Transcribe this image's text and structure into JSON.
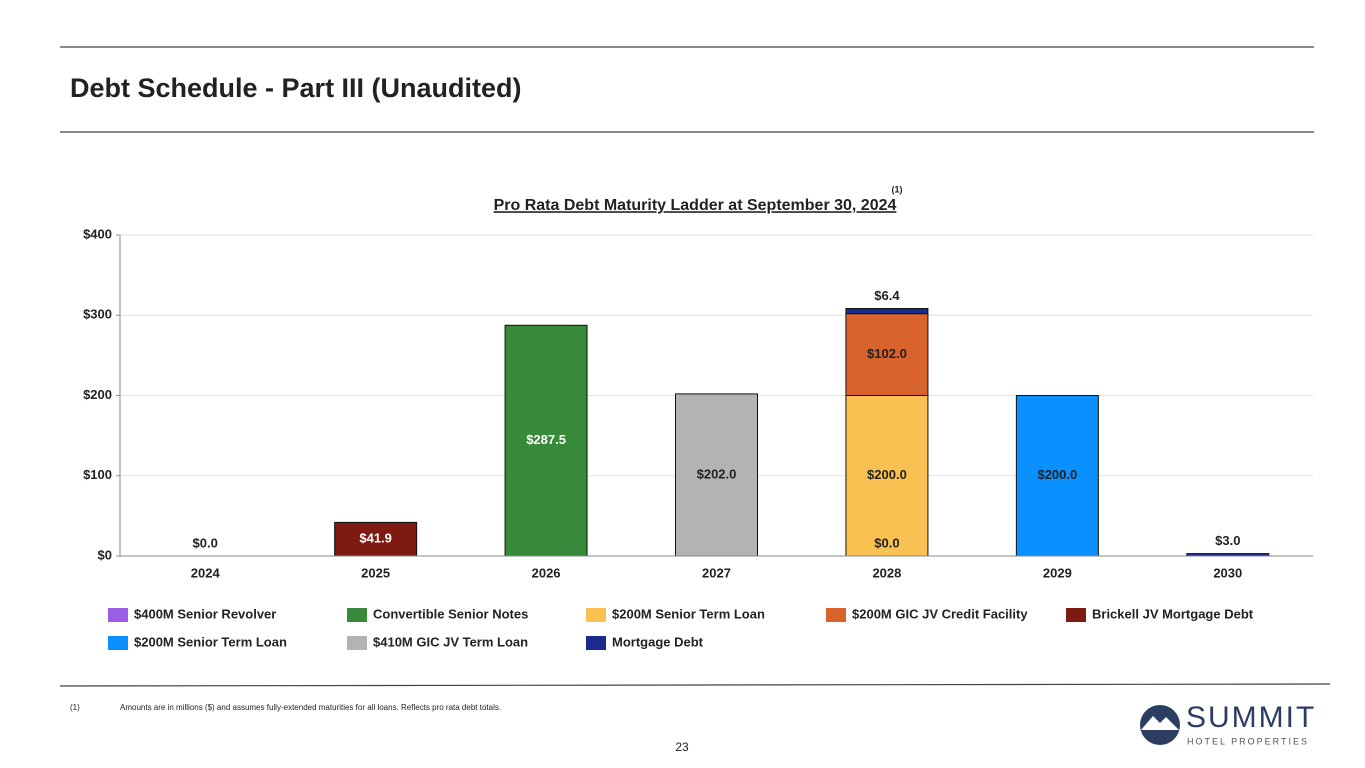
{
  "slide": {
    "title": "Debt Schedule - Part III (Unaudited)",
    "footnote_marker": "(1)",
    "footnote": "Amounts are in millions ($) and assumes fully-extended maturities for all loans. Reflects pro rata debt totals.",
    "page_number": "23",
    "logo_name": "SUMMIT",
    "logo_tagline": "HOTEL PROPERTIES"
  },
  "chart_data": {
    "type": "stacked_bar",
    "title": "Pro Rata Debt Maturity Ladder at September 30, 2024",
    "title_note": "(1)",
    "categories": [
      "2024",
      "2025",
      "2026",
      "2027",
      "2028",
      "2029",
      "2030"
    ],
    "ylim": [
      0,
      400
    ],
    "yticks": [
      {
        "value": 0,
        "label": "$0"
      },
      {
        "value": 100,
        "label": "$100"
      },
      {
        "value": 200,
        "label": "$200"
      },
      {
        "value": 300,
        "label": "$300"
      },
      {
        "value": 400,
        "label": "$400"
      }
    ],
    "grid": true,
    "series": [
      {
        "name": "$400M Senior Revolver",
        "color": "#9b5de5",
        "values": [
          0,
          null,
          null,
          null,
          0,
          null,
          null
        ],
        "value_labels": [
          "$0.0",
          null,
          null,
          null,
          "$0.0",
          null,
          null
        ]
      },
      {
        "name": "Convertible Senior Notes",
        "color": "#378a3a",
        "values": [
          null,
          null,
          287.5,
          null,
          null,
          null,
          null
        ],
        "value_labels": [
          null,
          null,
          "$287.5",
          null,
          null,
          null,
          null
        ]
      },
      {
        "name": "$200M Senior Term Loan",
        "color": "#f9c152",
        "values": [
          null,
          null,
          null,
          null,
          200,
          null,
          null
        ],
        "value_labels": [
          null,
          null,
          null,
          null,
          "$200.0",
          null,
          null
        ]
      },
      {
        "name": "$200M GIC JV Credit Facility",
        "color": "#d9632c",
        "values": [
          null,
          null,
          null,
          null,
          102,
          null,
          null
        ],
        "value_labels": [
          null,
          null,
          null,
          null,
          "$102.0",
          null,
          null
        ]
      },
      {
        "name": "Brickell JV Mortgage Debt",
        "color": "#7f1a12",
        "values": [
          null,
          41.9,
          null,
          null,
          null,
          null,
          null
        ],
        "value_labels": [
          null,
          "$41.9",
          null,
          null,
          null,
          null,
          null
        ]
      },
      {
        "name": "$200M Senior Term Loan",
        "color": "#0a90ff",
        "values": [
          null,
          null,
          null,
          null,
          null,
          200,
          null
        ],
        "value_labels": [
          null,
          null,
          null,
          null,
          null,
          "$200.0",
          null
        ]
      },
      {
        "name": "$410M GIC JV Term Loan",
        "color": "#b3b3b3",
        "values": [
          null,
          null,
          null,
          202,
          null,
          null,
          null
        ],
        "value_labels": [
          null,
          null,
          null,
          "$202.0",
          null,
          null,
          null
        ]
      },
      {
        "name": "Mortgage Debt",
        "color": "#1a2a8f",
        "values": [
          null,
          null,
          null,
          null,
          6.4,
          null,
          3.0
        ],
        "value_labels": [
          null,
          null,
          null,
          null,
          "$6.4",
          null,
          "$3.0"
        ]
      }
    ]
  }
}
